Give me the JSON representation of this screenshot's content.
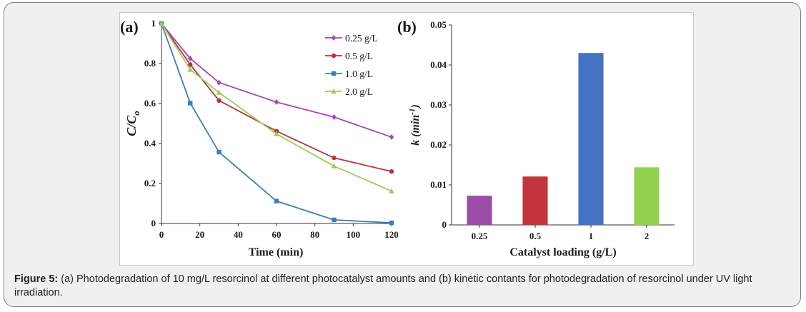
{
  "caption": {
    "label": "Figure 5:",
    "text": "(a) Photodegradation of 10 mg/L resorcinol at different photocatalyst amounts and (b) kinetic contants for photodegradation of resorcinol under UV light irradiation."
  },
  "chart_data": [
    {
      "type": "line",
      "panel_label": "(a)",
      "title": "",
      "xlabel": "Time (min)",
      "ylabel_main": "C/C",
      "ylabel_sub": "o",
      "xlim": [
        0,
        120
      ],
      "ylim": [
        0,
        1
      ],
      "xticks": [
        0,
        20,
        40,
        60,
        80,
        100,
        120
      ],
      "xtick_labels": [
        "0",
        "20",
        "40",
        "60",
        "80",
        "100",
        "120"
      ],
      "yticks": [
        0,
        0.2,
        0.4,
        0.6,
        0.8,
        1
      ],
      "ytick_labels": [
        "0",
        "0.2",
        "0.4",
        "0.6",
        "0.8",
        "1"
      ],
      "x": [
        0,
        15,
        30,
        60,
        90,
        120
      ],
      "legend_position": "top-right",
      "series": [
        {
          "name": "0.25 g/L",
          "color": "#a347b5",
          "marker": "diamond",
          "values": [
            1.0,
            0.825,
            0.705,
            0.607,
            0.532,
            0.432
          ]
        },
        {
          "name": "0.5 g/L",
          "color": "#b8343a",
          "marker": "circle",
          "values": [
            1.0,
            0.795,
            0.615,
            0.462,
            0.328,
            0.26
          ]
        },
        {
          "name": "1.0 g/L",
          "color": "#3a7fb8",
          "marker": "square",
          "values": [
            1.0,
            0.602,
            0.357,
            0.112,
            0.018,
            0.003
          ]
        },
        {
          "name": "2.0 g/L",
          "color": "#9acd5a",
          "marker": "triangle",
          "values": [
            1.0,
            0.77,
            0.655,
            0.448,
            0.287,
            0.162
          ]
        }
      ]
    },
    {
      "type": "bar",
      "panel_label": "(b)",
      "title": "",
      "xlabel": "Catalyst loading (g/L)",
      "ylabel_main": "k (min",
      "ylabel_sup": "-1",
      "ylabel_close": ")",
      "ylim": [
        0,
        0.05
      ],
      "yticks": [
        0,
        0.01,
        0.02,
        0.03,
        0.04,
        0.05
      ],
      "ytick_labels": [
        "0",
        "0.01",
        "0.02",
        "0.03",
        "0.04",
        "0.05"
      ],
      "categories": [
        "0.25",
        "0.5",
        "1",
        "2"
      ],
      "values": [
        0.0073,
        0.0121,
        0.043,
        0.0144
      ],
      "colors": [
        "#9b4ea8",
        "#c3353d",
        "#4472c4",
        "#92d050"
      ]
    }
  ]
}
